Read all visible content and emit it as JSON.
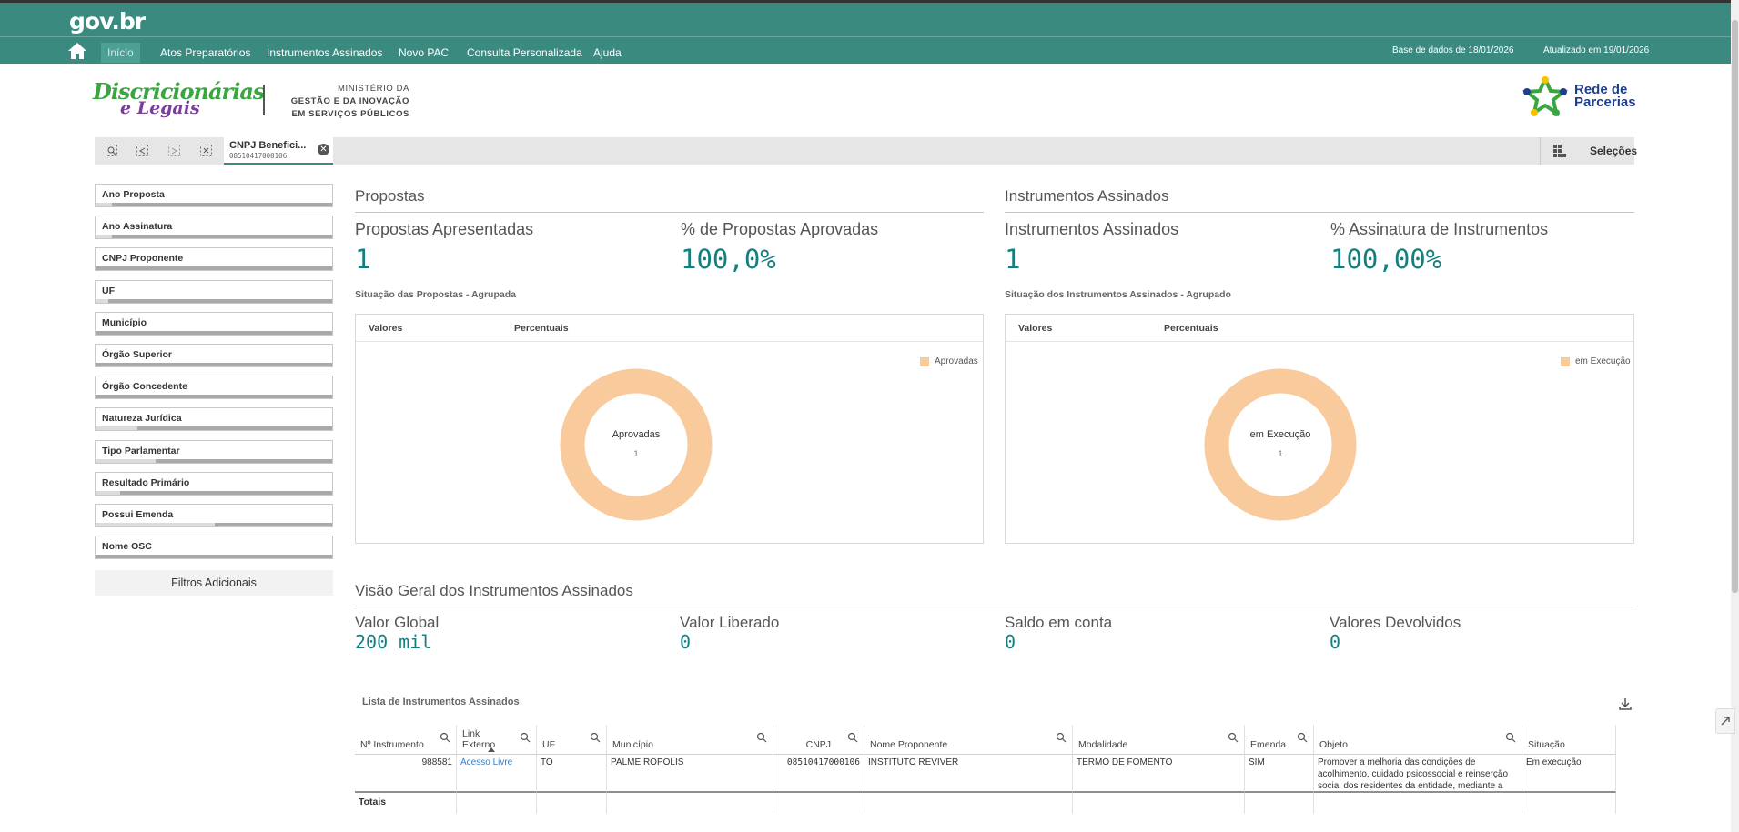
{
  "header": {
    "brand": "gov.br",
    "nav": [
      "Início",
      "Atos Preparatórios",
      "Instrumentos Assinados",
      "Novo PAC",
      "Consulta Personalizada",
      "Ajuda"
    ],
    "base_dados": "Base de dados de 18/01/2026",
    "atualizado": "Atualizado em 19/01/2026"
  },
  "logos": {
    "disc_line1": "Discricionárias",
    "disc_line2": "e Legais",
    "ministerio_line1": "MINISTÉRIO DA",
    "ministerio_line2": "GESTÃO E DA INOVAÇÃO",
    "ministerio_line3": "EM SERVIÇOS PÚBLICOS",
    "rede_line1": "Rede de",
    "rede_line2": "Parcerias"
  },
  "selections": {
    "chip_title": "CNPJ Benefici...",
    "chip_value": "08510417000106",
    "button_label": "Seleções"
  },
  "filters": [
    "Ano Proposta",
    "Ano Assinatura",
    "CNPJ Proponente",
    "UF",
    "Município",
    "Órgão Superior",
    "Órgão Concedente",
    "Natureza Jurídica",
    "Tipo Parlamentar",
    "Resultado Primário",
    "Possui Emenda",
    "Nome OSC"
  ],
  "filters_extra": "Filtros Adicionais",
  "propostas": {
    "title": "Propostas",
    "kpi1_label": "Propostas Apresentadas",
    "kpi1_value": "1",
    "kpi2_label": "% de Propostas Aprovadas",
    "kpi2_value": "100,0%",
    "chart_title": "Situação das Propostas - Agrupada",
    "tab1": "Valores",
    "tab2": "Percentuais",
    "legend": "Aprovadas",
    "center_label": "Aprovadas",
    "center_value": "1"
  },
  "instrumentos": {
    "title": "Instrumentos Assinados",
    "kpi1_label": "Instrumentos Assinados",
    "kpi1_value": "1",
    "kpi2_label": "% Assinatura de Instrumentos",
    "kpi2_value": "100,00%",
    "chart_title": "Situação dos Instrumentos Assinados - Agrupado",
    "tab1": "Valores",
    "tab2": "Percentuais",
    "legend": "em Execução",
    "center_label": "em Execução",
    "center_value": "1"
  },
  "visao": {
    "title": "Visão Geral dos Instrumentos Assinados",
    "items": [
      {
        "label": "Valor Global",
        "value": "200 mil"
      },
      {
        "label": "Valor Liberado",
        "value": "0"
      },
      {
        "label": "Saldo em conta",
        "value": "0"
      },
      {
        "label": "Valores Devolvidos",
        "value": "0"
      }
    ]
  },
  "table": {
    "title": "Lista de Instrumentos Assinados",
    "headers": [
      "Nº Instrumento",
      "Link Externo",
      "UF",
      "Município",
      "CNPJ",
      "Nome Proponente",
      "Modalidade",
      "Emenda",
      "Objeto",
      "Situação"
    ],
    "row": [
      "988581",
      "Acesso Livre",
      "TO",
      "PALMEIRÓPOLIS",
      "08510417000106",
      "INSTITUTO REVIVER",
      "TERMO DE FOMENTO",
      "SIM",
      "Promover a melhoria das condições de acolhimento, cuidado psicossocial e reinserção social dos residentes da entidade, mediante a",
      "Em execução"
    ],
    "totals": "Totais"
  },
  "colors": {
    "header": "#3a8a80",
    "kpi": "#157f7f",
    "donut": "#f8ca9c",
    "link": "#3b7cc4"
  },
  "chart_data": [
    {
      "type": "pie",
      "categories": [
        "Aprovadas"
      ],
      "values": [
        1
      ],
      "title": "Situação das Propostas - Agrupada"
    },
    {
      "type": "pie",
      "categories": [
        "em Execução"
      ],
      "values": [
        1
      ],
      "title": "Situação dos Instrumentos Assinados - Agrupado"
    }
  ]
}
